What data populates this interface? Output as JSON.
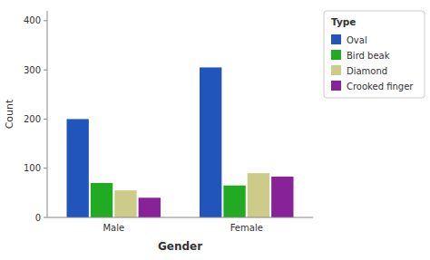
{
  "chart_data": {
    "type": "bar",
    "xlabel": "Gender",
    "ylabel": "Count",
    "legend_title": "Type",
    "categories": [
      "Male",
      "Female"
    ],
    "series": [
      {
        "name": "Oval",
        "color": "#2255bb",
        "values": [
          200,
          305
        ]
      },
      {
        "name": "Bird beak",
        "color": "#22aa22",
        "values": [
          70,
          65
        ]
      },
      {
        "name": "Diamond",
        "color": "#cccc88",
        "values": [
          55,
          90
        ]
      },
      {
        "name": "Crooked finger",
        "color": "#882299",
        "values": [
          40,
          83
        ]
      }
    ],
    "ylim": [
      0,
      420
    ],
    "yticks": [
      0,
      100,
      200,
      300,
      400
    ],
    "grid": false,
    "legend": "right"
  }
}
